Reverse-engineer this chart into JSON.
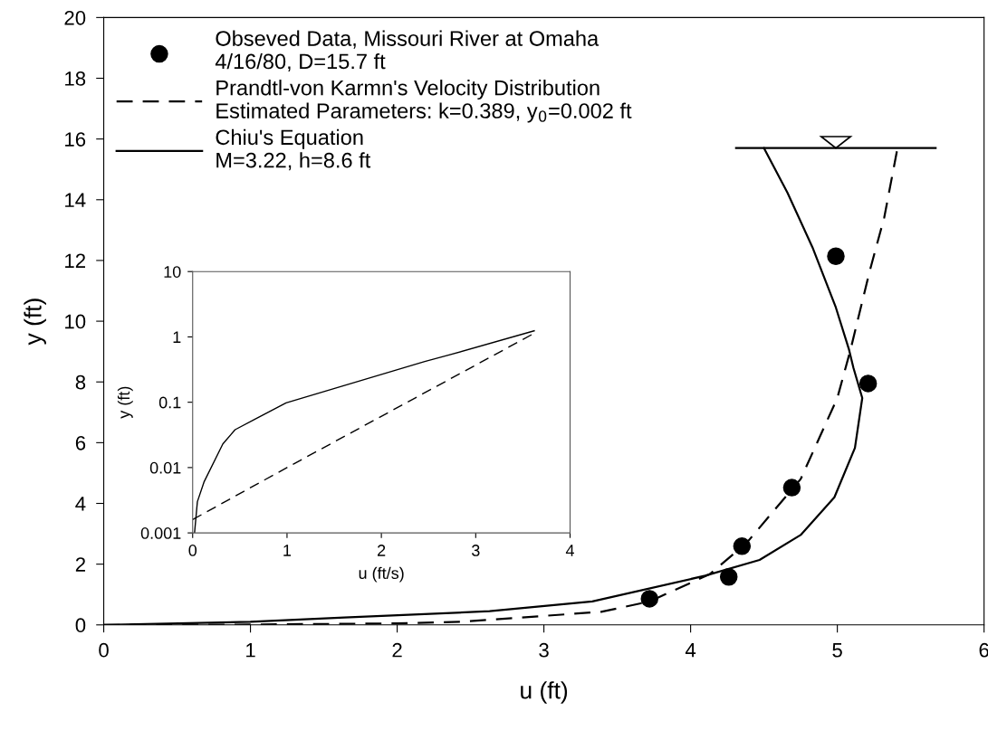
{
  "chart_data": [
    {
      "type": "line",
      "xlabel": "u (ft)",
      "ylabel": "y (ft)",
      "xlim": [
        0,
        6
      ],
      "ylim": [
        0,
        20
      ],
      "xticks": [
        0,
        1,
        2,
        3,
        4,
        5,
        6
      ],
      "yticks": [
        0,
        2,
        4,
        6,
        8,
        10,
        12,
        14,
        16,
        18,
        20
      ],
      "grid": false,
      "legend": "top left",
      "series": [
        {
          "name": "Obseved Data, Missouri River at Omaha\n4/16/80, D=15.7 ft",
          "type": "scatter",
          "marker": "circle",
          "color": "#000000",
          "x": [
            3.72,
            4.26,
            4.35,
            4.69,
            5.21,
            4.99
          ],
          "values": [
            0.86,
            1.58,
            2.59,
            4.52,
            7.95,
            12.14
          ]
        },
        {
          "name": "Prandtl-von Karmn's Velocity Distribution\nEstimated Parameters: k=0.389, y$_{0}$=0.002 ft",
          "line_style": "dashed",
          "color": "#000000",
          "x": [
            0,
            1,
            2,
            2.43,
            3.39,
            3.72,
            4.13,
            4.38,
            4.75,
            5.0,
            5.09,
            5.22,
            5.32,
            5.41
          ],
          "values": [
            0,
            0.01,
            0.05,
            0.1,
            0.43,
            0.77,
            1.67,
            2.69,
            4.8,
            7.47,
            9.06,
            11.64,
            13.42,
            15.7
          ]
        },
        {
          "name": "Chiu's Equation\nM=3.22, h=8.6 ft",
          "line_style": "solid",
          "color": "#000000",
          "x": [
            0,
            1,
            1.64,
            2.63,
            3.33,
            4.1,
            4.47,
            4.75,
            4.98,
            5.12,
            5.17,
            5.11,
            5.08,
            4.99,
            4.83,
            4.66,
            4.5
          ],
          "values": [
            0,
            0.1,
            0.24,
            0.45,
            0.77,
            1.62,
            2.14,
            2.96,
            4.2,
            5.83,
            7.47,
            8.46,
            9.06,
            10.45,
            12.44,
            14.23,
            15.7
          ]
        },
        {
          "line_style": "solid",
          "color": "#000000",
          "x": [
            4.31,
            5.67
          ],
          "values": [
            15.7,
            15.7
          ]
        }
      ]
    },
    {
      "type": "line",
      "xlabel": "u (ft/s)",
      "ylabel": "y (ft)",
      "log": "y",
      "xlim": [
        0,
        4
      ],
      "ylim": [
        0.001,
        10
      ],
      "xticks": [
        0,
        1,
        2,
        3,
        4
      ],
      "yticks": [
        0.001,
        0.01,
        0.1,
        1,
        10
      ],
      "grid": false,
      "series": [
        {
          "line_style": "solid",
          "color": "#000000",
          "x": [
            0.02,
            0.05,
            0.12,
            0.32,
            0.45,
            0.67,
            0.99,
            2.46,
            2.7,
            3.62
          ],
          "values": [
            0.001,
            0.003,
            0.006,
            0.023,
            0.038,
            0.056,
            0.098,
            0.42,
            0.52,
            1.24
          ]
        },
        {
          "line_style": "dashed",
          "color": "#000000",
          "x": [
            0,
            1,
            3.65
          ],
          "values": [
            0.0016,
            0.01,
            1.2
          ]
        }
      ]
    }
  ]
}
